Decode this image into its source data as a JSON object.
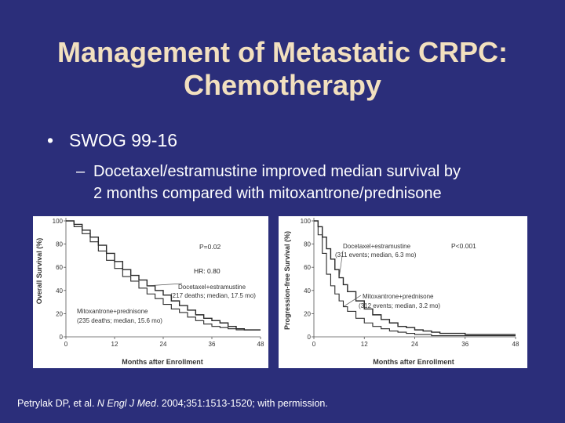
{
  "slide": {
    "title_line1": "Management of Metastatic CRPC:",
    "title_line2": "Chemotherapy",
    "bullet_marker": "•",
    "bullet": "SWOG 99-16",
    "sub_marker": "–",
    "sub_line1": "Docetaxel/estramustine improved median survival by",
    "sub_line2": "2 months compared with mitoxantrone/prednisone",
    "citation_pre": "Petrylak DP, et al. ",
    "citation_journal": "N Engl J Med",
    "citation_post": ". 2004;351:1513-1520; with permission."
  },
  "colors": {
    "background": "#2b2e7a",
    "title": "#f2e0bf",
    "text": "#ffffff",
    "curve": "#2a2a2a"
  },
  "chart_data": [
    {
      "type": "line",
      "ylabel": "Overall Survival (%)",
      "xlabel": "Months after Enrollment",
      "xticks": [
        "0",
        "12",
        "24",
        "36",
        "48"
      ],
      "yticks": [
        "0",
        "20",
        "40",
        "60",
        "80",
        "100"
      ],
      "xlim": [
        0,
        48
      ],
      "ylim": [
        0,
        100
      ],
      "p_value": "P=0.02",
      "hr": "HR: 0.80",
      "series": [
        {
          "name": "Docetaxel+estramustine",
          "annotation": "(217 deaths; median, 17.5 mo)",
          "x": [
            0,
            2,
            4,
            6,
            8,
            10,
            12,
            14,
            16,
            18,
            20,
            22,
            24,
            26,
            28,
            30,
            32,
            34,
            36,
            38,
            40,
            42,
            44,
            46,
            48
          ],
          "y": [
            100,
            97,
            92,
            86,
            79,
            72,
            65,
            58,
            53,
            49,
            44,
            40,
            36,
            31,
            27,
            23,
            19,
            16,
            14,
            12,
            9,
            7,
            6,
            6,
            6
          ]
        },
        {
          "name": "Mitoxantrone+prednisone",
          "annotation": "(235 deaths; median, 15.6 mo)",
          "x": [
            0,
            2,
            4,
            6,
            8,
            10,
            12,
            14,
            16,
            18,
            20,
            22,
            24,
            26,
            28,
            30,
            32,
            34,
            36,
            38,
            40,
            42,
            44,
            46,
            48
          ],
          "y": [
            100,
            95,
            89,
            82,
            74,
            66,
            59,
            52,
            48,
            42,
            37,
            33,
            28,
            24,
            21,
            17,
            14,
            11,
            9,
            8,
            7,
            6,
            6,
            6,
            6
          ]
        }
      ]
    },
    {
      "type": "line",
      "ylabel": "Progression-free Survival (%)",
      "xlabel": "Months after Enrollment",
      "xticks": [
        "0",
        "12",
        "24",
        "36",
        "48"
      ],
      "yticks": [
        "0",
        "20",
        "40",
        "60",
        "80",
        "100"
      ],
      "xlim": [
        0,
        48
      ],
      "ylim": [
        0,
        100
      ],
      "p_value": "P<0.001",
      "series": [
        {
          "name": "Docetaxel+estramustine",
          "annotation": "(311 events; median, 6.3 mo)",
          "x": [
            0,
            1,
            2,
            3,
            4,
            5,
            6,
            7,
            8,
            10,
            12,
            14,
            16,
            18,
            20,
            22,
            24,
            26,
            28,
            30,
            32,
            36,
            40,
            48
          ],
          "y": [
            100,
            95,
            86,
            76,
            67,
            58,
            51,
            45,
            39,
            31,
            24,
            19,
            15,
            12,
            9,
            8,
            6,
            5,
            4,
            3,
            3,
            2,
            2,
            2
          ]
        },
        {
          "name": "Mitoxantrone+prednisone",
          "annotation": "(312 events; median, 3.2 mo)",
          "x": [
            0,
            1,
            2,
            3,
            4,
            5,
            6,
            7,
            8,
            10,
            12,
            14,
            16,
            18,
            20,
            22,
            24,
            26,
            28,
            30,
            32,
            36,
            40,
            48
          ],
          "y": [
            100,
            88,
            72,
            54,
            44,
            37,
            31,
            26,
            22,
            16,
            12,
            9,
            7,
            5,
            4,
            3,
            2,
            2,
            1,
            1,
            1,
            1,
            1,
            1
          ]
        }
      ]
    }
  ]
}
